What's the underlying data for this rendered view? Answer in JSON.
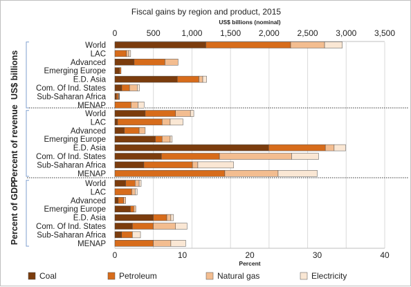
{
  "chart_data": {
    "type": "bar",
    "stacked": true,
    "orientation": "horizontal",
    "title": "Fiscal gains by region and product, 2015",
    "top_axis": {
      "label": "US$ billions (nominal)",
      "range": [
        0,
        3500
      ],
      "ticks": [
        "0",
        "500",
        "1,000",
        "1,500",
        "2,000",
        "2,500",
        "3,000",
        "3,500"
      ]
    },
    "bottom_axis": {
      "label": "Percent",
      "range": [
        0,
        40
      ],
      "ticks": [
        "0",
        "10",
        "20",
        "30",
        "40"
      ]
    },
    "legend": {
      "placement": "bottom",
      "entries": [
        "Coal",
        "Petroleum",
        "Natural gas",
        "Electricity"
      ]
    },
    "series_colors": [
      "#7b3c0d",
      "#d76c1b",
      "#f3bd90",
      "#fae7d4"
    ],
    "panels": [
      {
        "name": "US$ billions",
        "axis": "top",
        "categories": [
          {
            "label": "World",
            "values": [
              1180,
              1100,
              440,
              230
            ]
          },
          {
            "label": "LAC",
            "values": [
              0,
              150,
              30,
              25
            ]
          },
          {
            "label": "Advanced",
            "values": [
              250,
              400,
              170,
              0
            ]
          },
          {
            "label": "Emerging Europe",
            "values": [
              60,
              20,
              0,
              0
            ]
          },
          {
            "label": "E.D. Asia",
            "values": [
              810,
              280,
              50,
              50
            ]
          },
          {
            "label": "Com. Of Ind. States",
            "values": [
              90,
              100,
              100,
              30
            ]
          },
          {
            "label": "Sub-Saharan Africa",
            "values": [
              20,
              25,
              10,
              5
            ]
          },
          {
            "label": "MENAP",
            "values": [
              0,
              210,
              90,
              80
            ]
          }
        ]
      },
      {
        "name": "Percent of revenue",
        "axis": "bottom",
        "categories": [
          {
            "label": "World",
            "values": [
              4.5,
              4.5,
              2.2,
              0.5
            ]
          },
          {
            "label": "LAC",
            "values": [
              0.4,
              6.6,
              1.2,
              1.9
            ]
          },
          {
            "label": "Advanced",
            "values": [
              1.4,
              2.2,
              0.9,
              0
            ]
          },
          {
            "label": "Emerging Europe",
            "values": [
              6,
              1,
              1.2,
              0.3
            ]
          },
          {
            "label": "E.D. Asia",
            "values": [
              22.8,
              8.4,
              1.3,
              1.7
            ]
          },
          {
            "label": "Com. Of Ind. States",
            "values": [
              6.9,
              8.6,
              10.7,
              4
            ]
          },
          {
            "label": "Sub-Saharan Africa",
            "values": [
              4.3,
              7.2,
              0.8,
              5.3
            ]
          },
          {
            "label": "MENAP",
            "values": [
              0,
              16.3,
              7.9,
              5.8
            ]
          }
        ]
      },
      {
        "name": "Percent of GDP",
        "axis": "bottom",
        "categories": [
          {
            "label": "World",
            "values": [
              1.6,
              1.4,
              0.6,
              0.3
            ]
          },
          {
            "label": "LAC",
            "values": [
              0,
              2.5,
              0.5,
              0.3
            ]
          },
          {
            "label": "Advanced",
            "values": [
              0.5,
              0.8,
              0.3,
              0
            ]
          },
          {
            "label": "Emerging Europe",
            "values": [
              2.3,
              0.5,
              0.3,
              0
            ]
          },
          {
            "label": "E.D. Asia",
            "values": [
              5.7,
              2,
              0.6,
              0.4
            ]
          },
          {
            "label": "Com. Of Ind. States",
            "values": [
              2.6,
              3.1,
              3.3,
              1.7
            ]
          },
          {
            "label": "Sub-Saharan Africa",
            "values": [
              1,
              1.6,
              0,
              1.2
            ]
          },
          {
            "label": "MENAP",
            "values": [
              0,
              5.7,
              2.6,
              2.2
            ]
          }
        ]
      }
    ]
  }
}
